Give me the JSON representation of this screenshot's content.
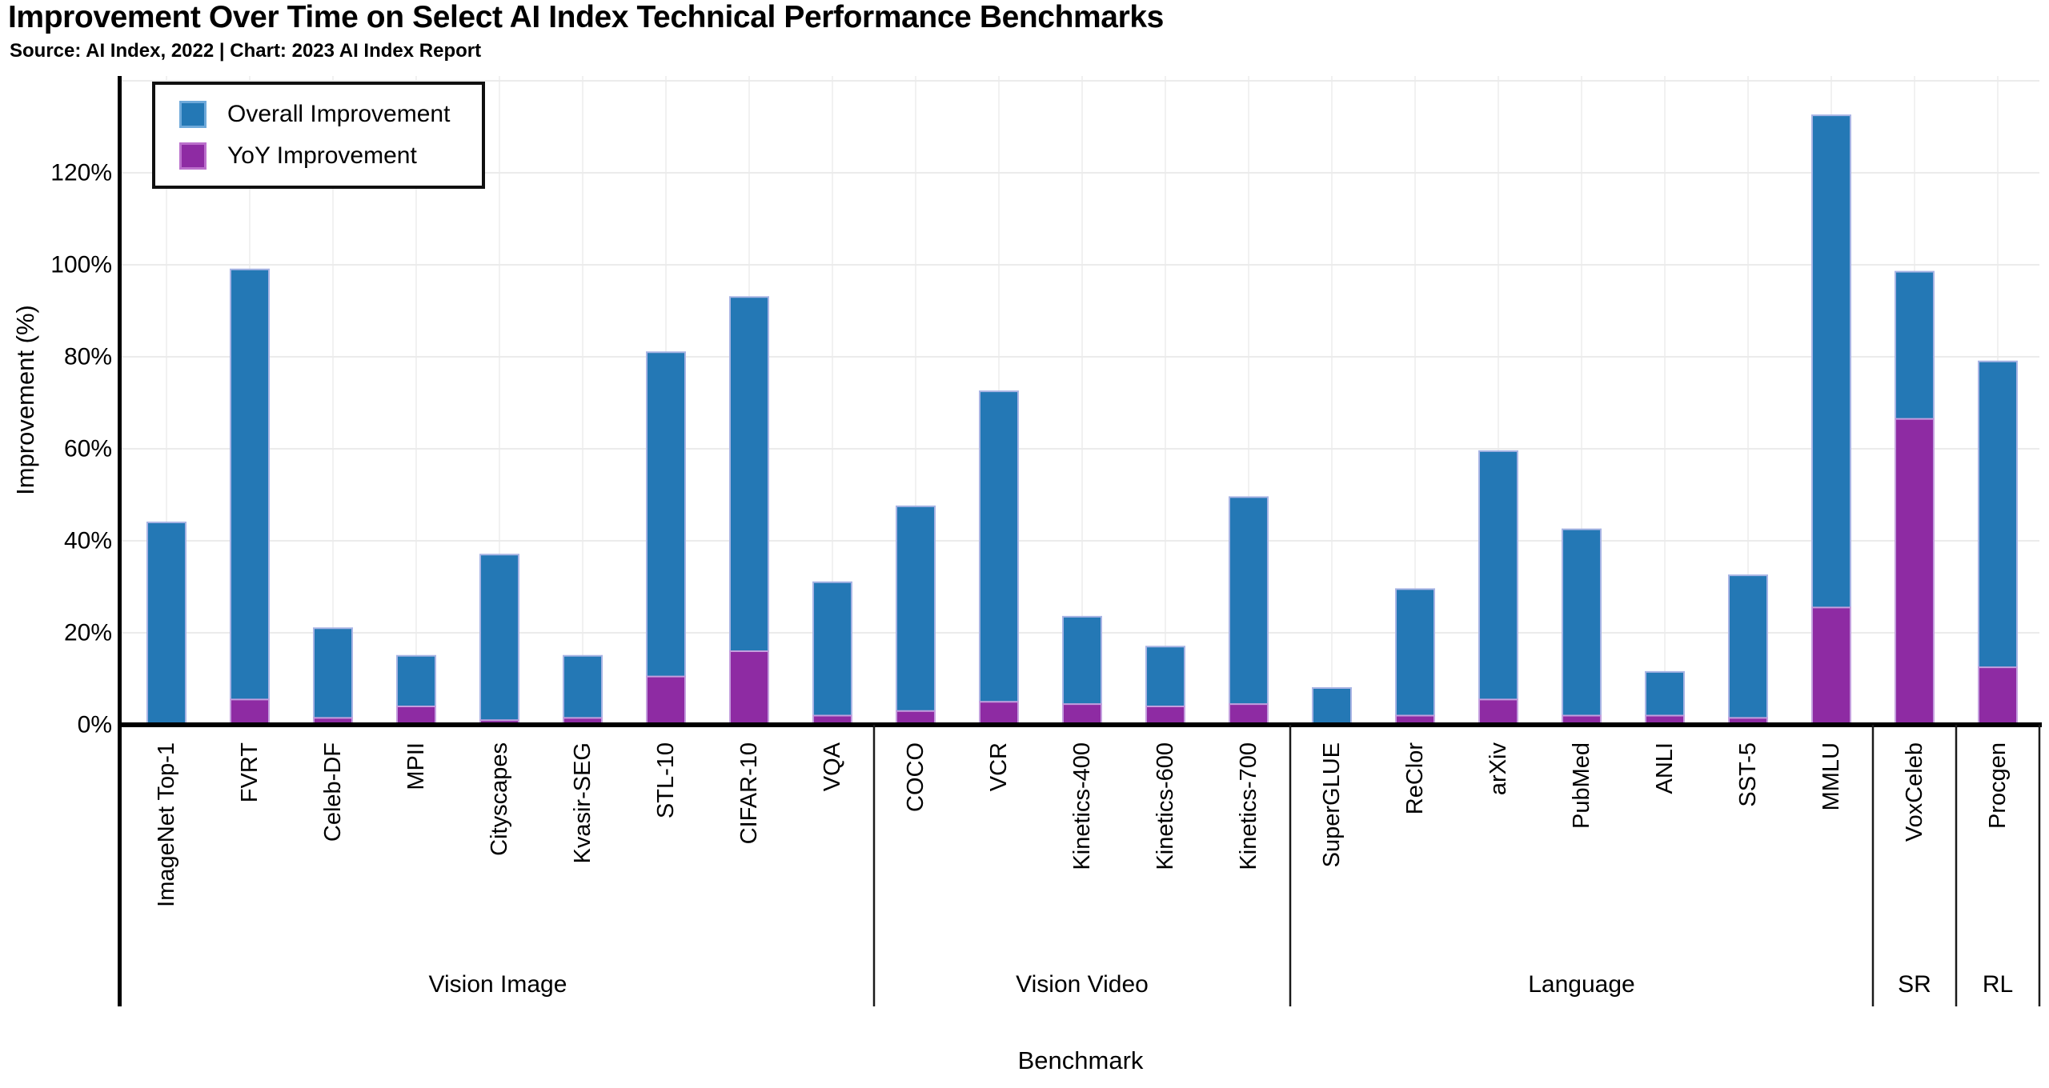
{
  "header": {
    "title": "Improvement Over Time on Select AI Index Technical Performance Benchmarks",
    "source_line": "Source: AI Index, 2022 | Chart: 2023 AI Index Report"
  },
  "legend": {
    "entries": [
      {
        "label": "Overall Improvement",
        "color": "#2478b5",
        "edge": "#6ea9da"
      },
      {
        "label": "YoY Improvement",
        "color": "#8e2ba3",
        "edge": "#bb6fcc"
      }
    ]
  },
  "y_axis": {
    "label": "Improvement (%)",
    "ticks": [
      "0%",
      "20%",
      "40%",
      "60%",
      "80%",
      "100%",
      "120%"
    ]
  },
  "x_axis": {
    "label": "Benchmark"
  },
  "chart_data": {
    "type": "bar",
    "subtype": "overlay-at-base",
    "title": "Improvement Over Time on Select AI Index Technical Performance Benchmarks",
    "xlabel": "Benchmark",
    "ylabel": "Improvement (%)",
    "ylim": [
      0,
      141
    ],
    "ytick_interval": 20,
    "grid": true,
    "legend_position": "top-left",
    "colors": {
      "overall": "#2478b5",
      "yoy": "#8e2ba3",
      "bar_edge_overall": "#a8b4e4",
      "bar_edge_yoy": "#c49fde"
    },
    "series": [
      {
        "name": "Overall Improvement",
        "key": "overall"
      },
      {
        "name": "YoY Improvement",
        "key": "yoy"
      }
    ],
    "groups": [
      {
        "name": "Vision Image",
        "categories": [
          "ImageNet Top-1",
          "FVRT",
          "Celeb-DF",
          "MPII",
          "Cityscapes",
          "Kvasir-SEG",
          "STL-10",
          "CIFAR-10",
          "VQA"
        ],
        "overall": [
          44,
          99,
          21,
          15,
          37,
          15,
          81,
          93,
          31
        ],
        "yoy": [
          0.3,
          5.5,
          1.5,
          4,
          1,
          1.5,
          10.5,
          16,
          2
        ]
      },
      {
        "name": "Vision Video",
        "categories": [
          "COCO",
          "VCR",
          "Kinetics-400",
          "Kinetics-600",
          "Kinetics-700"
        ],
        "overall": [
          47.5,
          72.5,
          23.5,
          17,
          49.5
        ],
        "yoy": [
          3,
          5,
          4.5,
          4,
          4.5
        ]
      },
      {
        "name": "Language",
        "categories": [
          "SuperGLUE",
          "ReClor",
          "arXiv",
          "PubMed",
          "ANLI",
          "SST-5",
          "MMLU"
        ],
        "overall": [
          8,
          29.5,
          59.5,
          42.5,
          11.5,
          32.5,
          132.5
        ],
        "yoy": [
          0.3,
          2,
          5.5,
          2,
          2,
          1.5,
          25.5
        ]
      },
      {
        "name": "SR",
        "categories": [
          "VoxCeleb"
        ],
        "overall": [
          98.5
        ],
        "yoy": [
          66.5
        ]
      },
      {
        "name": "RL",
        "categories": [
          "Procgen"
        ],
        "overall": [
          79
        ],
        "yoy": [
          12.5
        ]
      }
    ]
  }
}
